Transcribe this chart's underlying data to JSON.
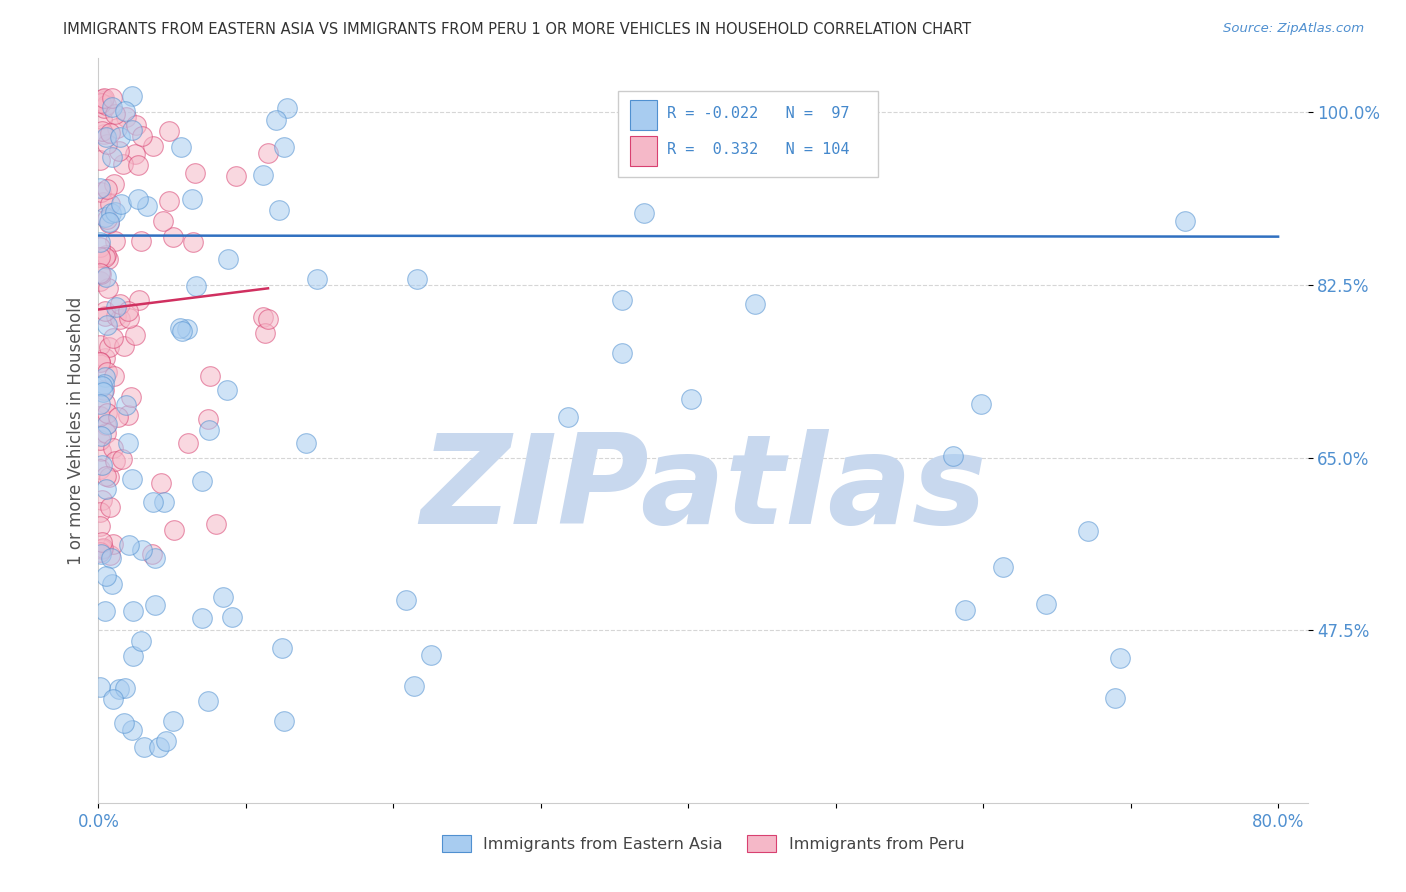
{
  "title": "IMMIGRANTS FROM EASTERN ASIA VS IMMIGRANTS FROM PERU 1 OR MORE VEHICLES IN HOUSEHOLD CORRELATION CHART",
  "source": "Source: ZipAtlas.com",
  "ylabel": "1 or more Vehicles in Household",
  "legend_label1": "Immigrants from Eastern Asia",
  "legend_label2": "Immigrants from Peru",
  "R1": -0.022,
  "N1": 97,
  "R2": 0.332,
  "N2": 104,
  "xlim": [
    0.0,
    0.82
  ],
  "ylim": [
    0.3,
    1.055
  ],
  "yticks": [
    0.475,
    0.65,
    0.825,
    1.0
  ],
  "ytick_labels": [
    "47.5%",
    "65.0%",
    "82.5%",
    "100.0%"
  ],
  "xticks": [
    0.0,
    0.1,
    0.2,
    0.3,
    0.4,
    0.5,
    0.6,
    0.7,
    0.8
  ],
  "xtick_labels": [
    "0.0%",
    "",
    "",
    "",
    "",
    "",
    "",
    "",
    "80.0%"
  ],
  "color1": "#A8CCF0",
  "color2": "#F5B8C8",
  "edge_color1": "#5090D0",
  "edge_color2": "#D84070",
  "trend_color1": "#3070C0",
  "trend_color2": "#D03060",
  "background_color": "#FFFFFF",
  "watermark": "ZIPatlas",
  "watermark_color": "#C8D8EE",
  "grid_color": "#BBBBBB",
  "title_color": "#333333",
  "source_color": "#5090D0",
  "tick_color": "#5090D0",
  "ylabel_color": "#555555",
  "legend_text_color": "#4488CC"
}
